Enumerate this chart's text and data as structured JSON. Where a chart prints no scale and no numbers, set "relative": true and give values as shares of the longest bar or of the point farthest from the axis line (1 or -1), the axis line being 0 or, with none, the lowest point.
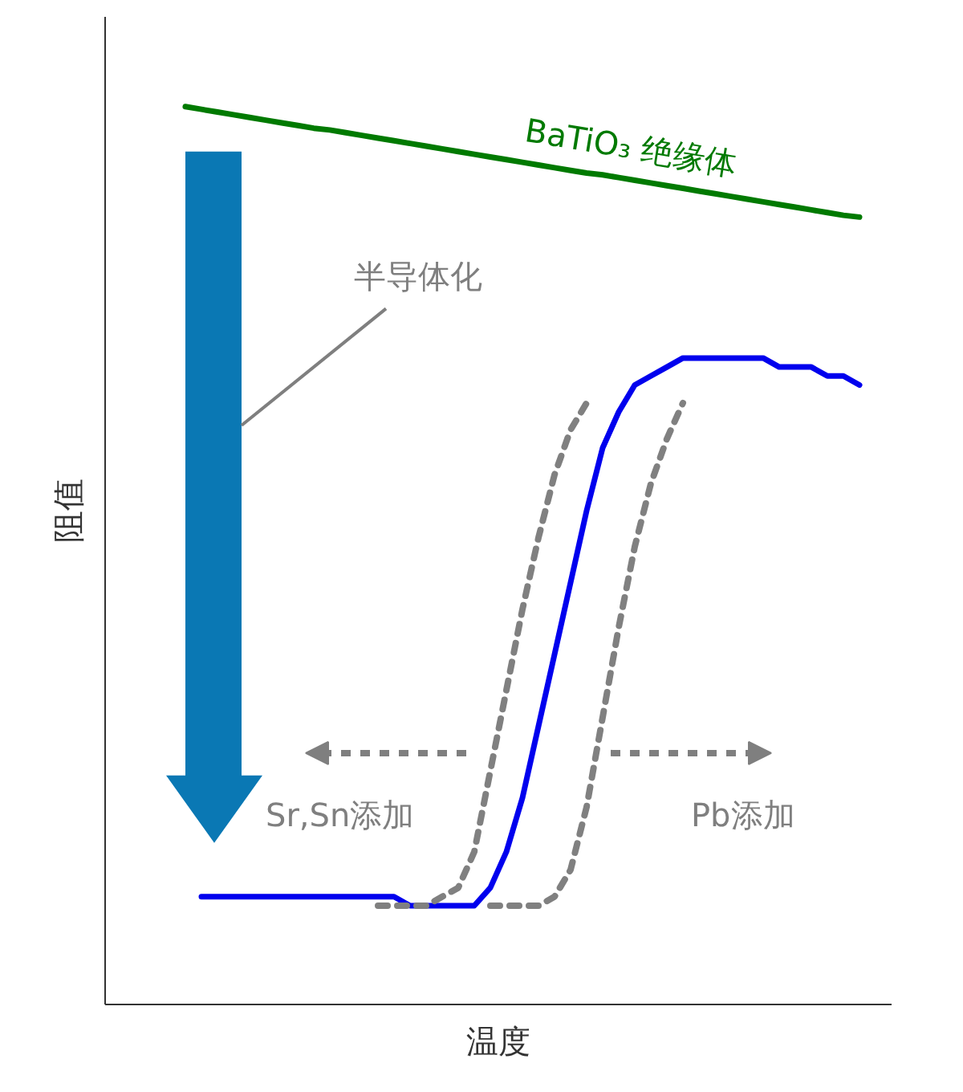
{
  "chart_data": {
    "type": "line",
    "relative": true,
    "xlabel": "温度",
    "ylabel": "阻值",
    "categories": [
      null,
      null,
      null,
      null,
      null,
      null,
      null,
      null,
      null,
      null,
      null,
      null,
      null,
      null,
      null,
      null,
      null,
      null,
      null,
      null,
      null,
      null,
      null,
      null,
      null,
      null,
      null,
      null,
      null,
      null,
      null,
      null,
      null,
      null,
      null,
      null,
      null,
      null,
      null,
      null,
      null,
      null,
      null,
      null
    ],
    "series": [
      {
        "name": "BaTiO₃ 绝缘体",
        "color": "#007a00",
        "line_style": "solid",
        "values": [
          1.0,
          0.997,
          0.994,
          0.991,
          0.988,
          0.985,
          0.982,
          0.979,
          0.976,
          0.974,
          0.971,
          0.968,
          0.965,
          0.962,
          0.959,
          0.956,
          0.953,
          0.95,
          0.947,
          0.944,
          0.941,
          0.938,
          0.935,
          0.932,
          0.929,
          0.926,
          0.924,
          0.921,
          0.918,
          0.915,
          0.912,
          0.909,
          0.906,
          0.903,
          0.9,
          0.897,
          0.894,
          0.891,
          0.888,
          0.885,
          0.882,
          0.879,
          0.877,
          null
        ]
      },
      {
        "color": "#0000ee",
        "line_style": "solid",
        "values": [
          null,
          0.12,
          0.12,
          0.12,
          0.12,
          0.12,
          0.12,
          0.12,
          0.12,
          0.12,
          0.12,
          0.12,
          0.12,
          0.12,
          0.11,
          0.11,
          0.11,
          0.11,
          0.11,
          0.13,
          0.17,
          0.23,
          0.31,
          0.39,
          0.47,
          0.55,
          0.62,
          0.66,
          0.69,
          0.7,
          0.71,
          0.72,
          0.72,
          0.72,
          0.72,
          0.72,
          0.72,
          0.71,
          0.71,
          0.71,
          0.7,
          0.7,
          0.69,
          null
        ]
      },
      {
        "color": "#808080",
        "line_style": "dashed",
        "values": [
          null,
          null,
          null,
          null,
          null,
          null,
          null,
          null,
          null,
          null,
          null,
          null,
          0.11,
          0.11,
          0.11,
          0.11,
          0.12,
          0.13,
          0.17,
          0.26,
          0.35,
          0.44,
          0.52,
          0.59,
          0.64,
          0.67,
          null,
          null,
          null,
          null,
          null,
          null,
          null,
          null,
          null,
          null,
          null,
          null,
          null,
          null,
          null,
          null,
          null,
          null
        ]
      },
      {
        "color": "#808080",
        "line_style": "dashed",
        "values": [
          null,
          null,
          null,
          null,
          null,
          null,
          null,
          null,
          null,
          null,
          null,
          null,
          null,
          null,
          null,
          null,
          null,
          null,
          null,
          0.11,
          0.11,
          0.11,
          0.11,
          0.12,
          0.15,
          0.22,
          0.32,
          0.42,
          0.51,
          0.58,
          0.63,
          0.67,
          null,
          null,
          null,
          null,
          null,
          null,
          null,
          null,
          null,
          null,
          null,
          null
        ]
      }
    ],
    "annotations": [
      "半导体化",
      "Sr,Sn添加",
      "Pb添加"
    ]
  }
}
